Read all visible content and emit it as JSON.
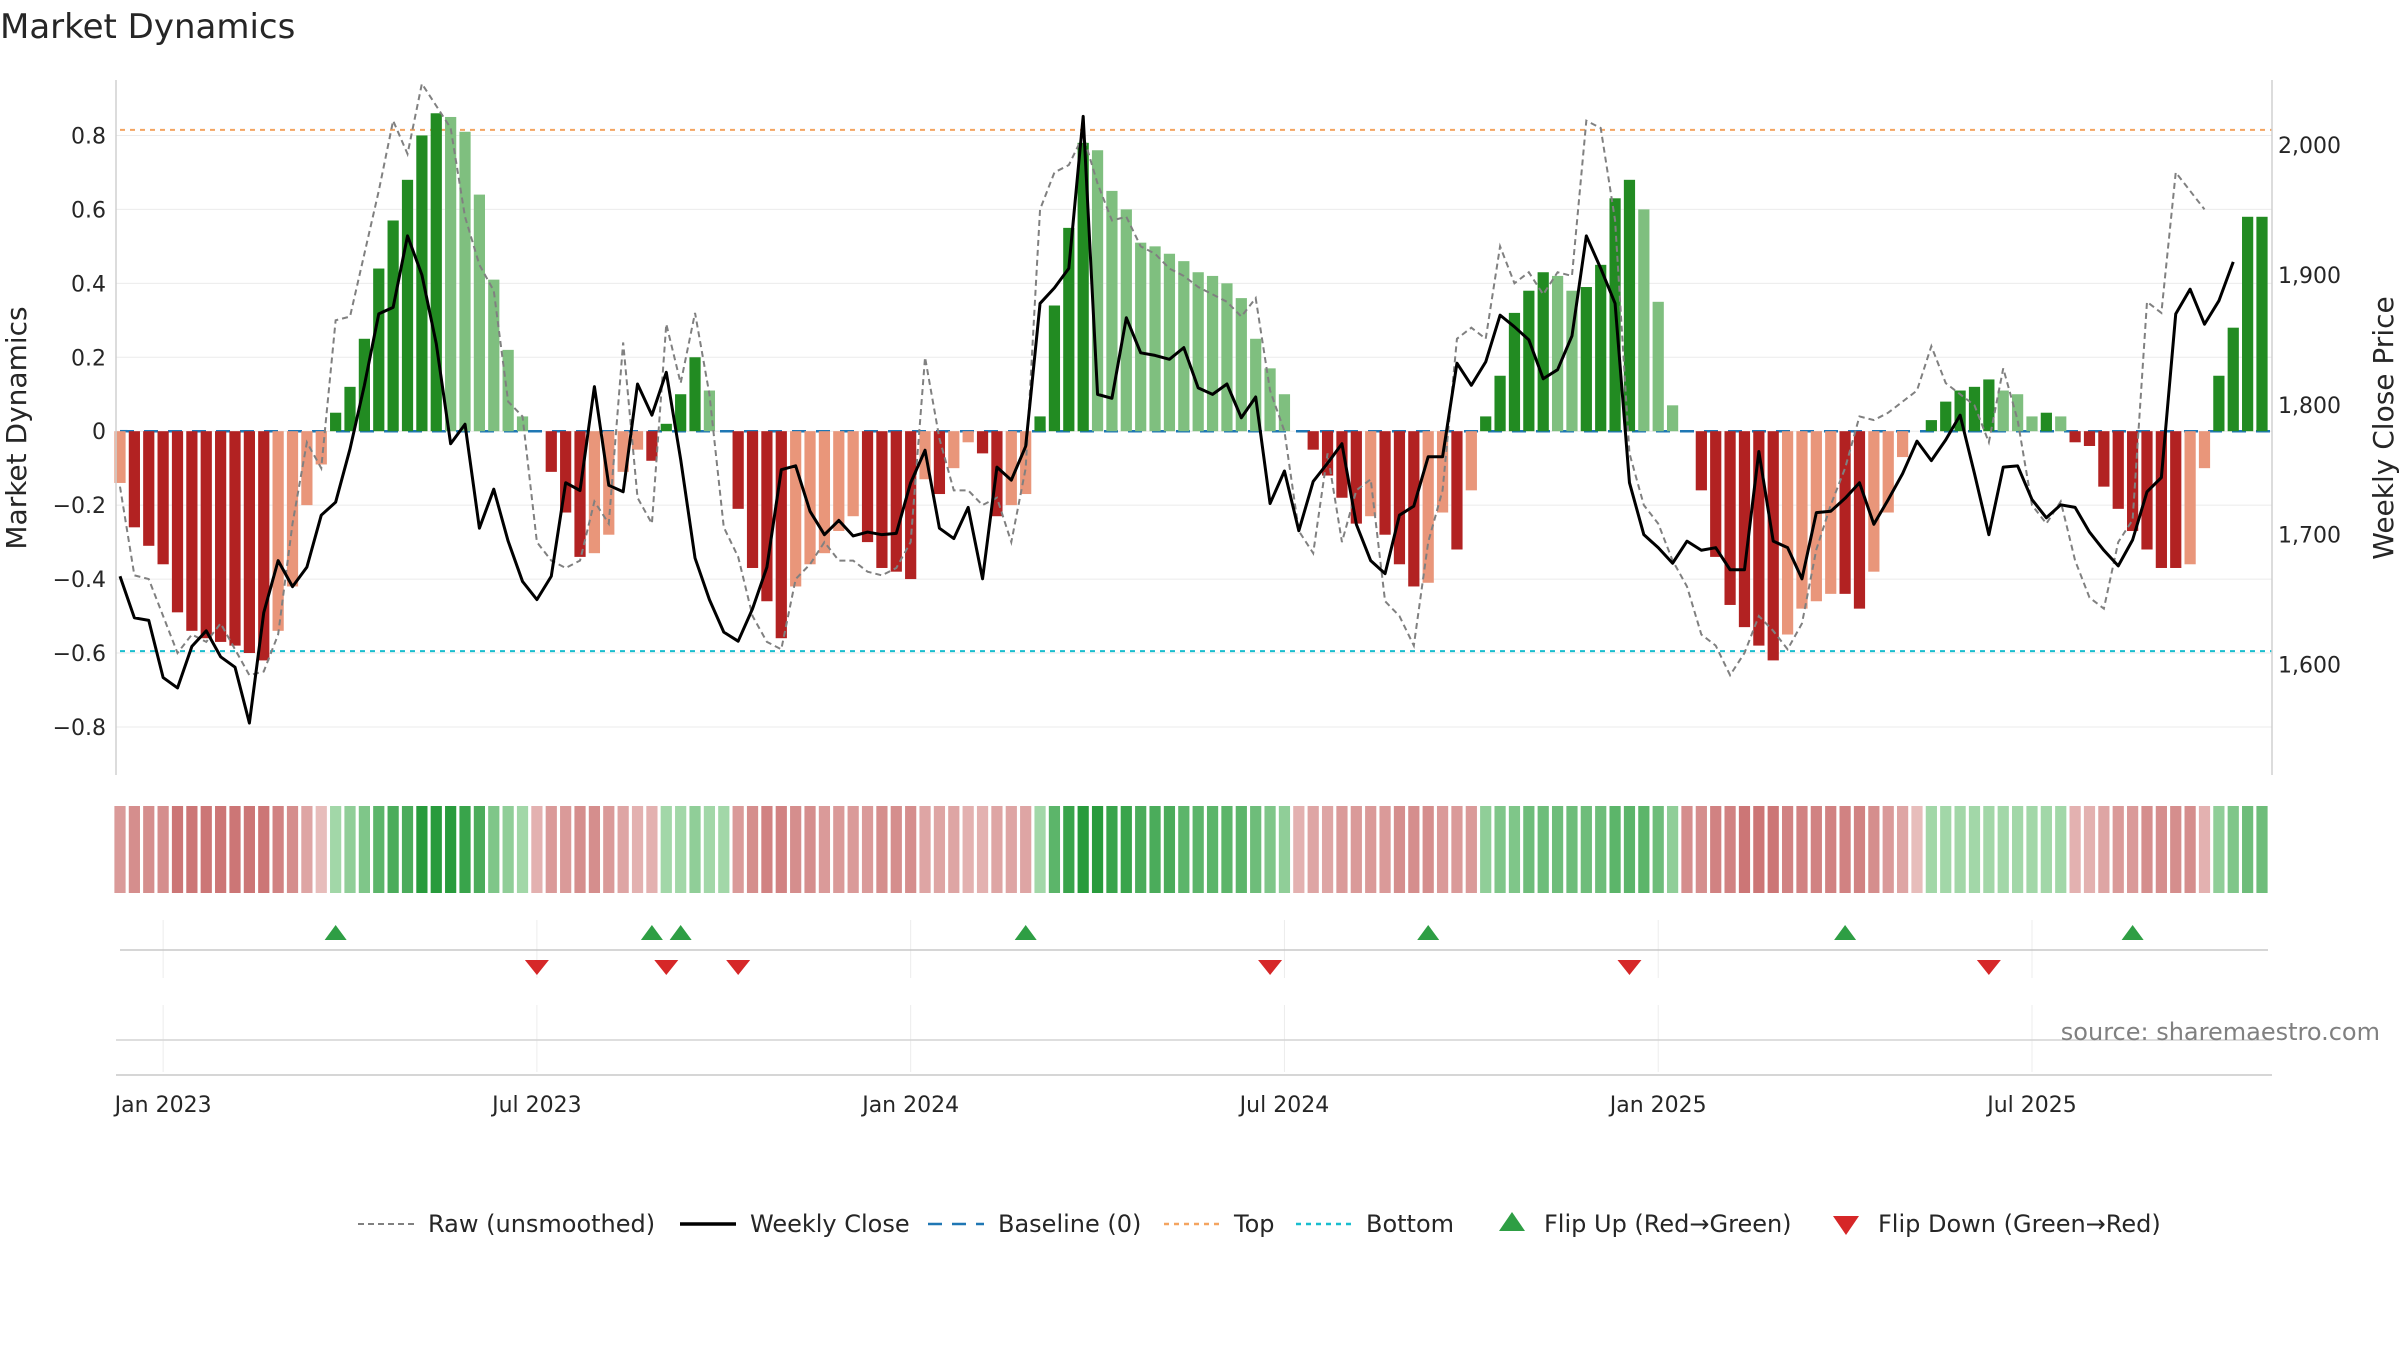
{
  "chart_data": {
    "type": "bar",
    "title": "Market Dynamics",
    "ylabel": "Market Dynamics",
    "y2label": "Weekly Close Price",
    "ylim": [
      -0.93,
      0.95
    ],
    "y2lim": [
      1515,
      2050
    ],
    "y_ticks": [
      0.8,
      0.6,
      0.4,
      0.2,
      0,
      -0.2,
      -0.4,
      -0.6,
      -0.8
    ],
    "y_tick_labels": [
      "0.8",
      "0.6",
      "0.4",
      "0.2",
      "0",
      "−0.2",
      "−0.4",
      "−0.6",
      "−0.8"
    ],
    "y2_ticks": [
      2000,
      1900,
      1800,
      1700,
      1600
    ],
    "y2_tick_labels": [
      "2,000",
      "1,900",
      "1,800",
      "1,700",
      "1,600"
    ],
    "x_ticks": [
      {
        "week": 3,
        "label": "Jan 2023"
      },
      {
        "week": 29,
        "label": "Jul 2023"
      },
      {
        "week": 55,
        "label": "Jan 2024"
      },
      {
        "week": 81,
        "label": "Jul 2024"
      },
      {
        "week": 107,
        "label": "Jan 2025"
      },
      {
        "week": 133,
        "label": "Jul 2025"
      }
    ],
    "top_line": 0.815,
    "bottom_line": -0.595,
    "baseline": 0,
    "colors": {
      "green_strong": "#228b22",
      "green_weak": "#7fbf7f",
      "red_strong": "#b22222",
      "red_weak": "#e9967a",
      "raw": "#808080",
      "close": "#000000",
      "baseline": "#1f77b4",
      "top": "#f4a460",
      "bottom": "#17becf",
      "flip_up": "#2e9e44",
      "flip_down": "#d62728"
    },
    "series": [
      {
        "name": "Market Dynamics",
        "values": [
          -0.14,
          -0.26,
          -0.31,
          -0.36,
          -0.49,
          -0.54,
          -0.56,
          -0.57,
          -0.58,
          -0.6,
          -0.62,
          -0.54,
          -0.42,
          -0.2,
          -0.09,
          0.05,
          0.12,
          0.25,
          0.44,
          0.57,
          0.68,
          0.8,
          0.86,
          0.85,
          0.81,
          0.64,
          0.41,
          0.22,
          0.04,
          0,
          -0.11,
          -0.22,
          -0.34,
          -0.33,
          -0.28,
          -0.11,
          -0.05,
          -0.08,
          0.02,
          0.1,
          0.2,
          0.11,
          0,
          -0.21,
          -0.37,
          -0.46,
          -0.56,
          -0.42,
          -0.36,
          -0.33,
          -0.27,
          -0.23,
          -0.3,
          -0.37,
          -0.38,
          -0.4,
          -0.13,
          -0.17,
          -0.1,
          -0.03,
          -0.06,
          -0.23,
          -0.2,
          -0.17,
          0.04,
          0.34,
          0.55,
          0.78,
          0.76,
          0.65,
          0.6,
          0.51,
          0.5,
          0.48,
          0.46,
          0.43,
          0.42,
          0.4,
          0.36,
          0.25,
          0.17,
          0.1,
          0,
          -0.05,
          -0.12,
          -0.18,
          -0.25,
          -0.23,
          -0.28,
          -0.36,
          -0.42,
          -0.41,
          -0.22,
          -0.32,
          -0.16,
          0.04,
          0.15,
          0.32,
          0.38,
          0.43,
          0.42,
          0.38,
          0.39,
          0.45,
          0.63,
          0.68,
          0.6,
          0.35,
          0.07,
          0,
          -0.16,
          -0.34,
          -0.47,
          -0.53,
          -0.58,
          -0.62,
          -0.55,
          -0.48,
          -0.46,
          -0.44,
          -0.44,
          -0.48,
          -0.38,
          -0.22,
          -0.07,
          0,
          0.03,
          0.08,
          0.11,
          0.12,
          0.14,
          0.11,
          0.1,
          0.04,
          0.05,
          0.04,
          -0.03,
          -0.04,
          -0.15,
          -0.21,
          -0.27,
          -0.32,
          -0.37,
          -0.37,
          -0.36,
          -0.1,
          0.15,
          0.28,
          0.58,
          0.58
        ]
      },
      {
        "name": "Raw (unsmoothed)",
        "values": [
          -0.15,
          -0.39,
          -0.4,
          -0.5,
          -0.6,
          -0.55,
          -0.57,
          -0.52,
          -0.59,
          -0.66,
          -0.65,
          -0.55,
          -0.25,
          -0.03,
          -0.1,
          0.3,
          0.31,
          0.48,
          0.65,
          0.84,
          0.75,
          0.94,
          0.88,
          0.82,
          0.58,
          0.45,
          0.38,
          0.08,
          0.04,
          -0.3,
          -0.35,
          -0.37,
          -0.35,
          -0.19,
          -0.25,
          0.24,
          -0.18,
          -0.25,
          0.29,
          0.13,
          0.32,
          0.1,
          -0.26,
          -0.34,
          -0.5,
          -0.57,
          -0.59,
          -0.4,
          -0.36,
          -0.3,
          -0.35,
          -0.35,
          -0.38,
          -0.39,
          -0.37,
          -0.3,
          0.2,
          -0.02,
          -0.16,
          -0.16,
          -0.2,
          -0.18,
          -0.3,
          -0.1,
          0.6,
          0.7,
          0.72,
          0.8,
          0.67,
          0.57,
          0.58,
          0.5,
          0.48,
          0.44,
          0.42,
          0.39,
          0.37,
          0.35,
          0.31,
          0.36,
          0.11,
          0,
          -0.27,
          -0.33,
          -0.06,
          -0.3,
          -0.16,
          -0.13,
          -0.46,
          -0.5,
          -0.58,
          -0.3,
          -0.16,
          0.25,
          0.28,
          0.25,
          0.5,
          0.4,
          0.43,
          0.37,
          0.43,
          0.42,
          0.84,
          0.82,
          0.57,
          -0.06,
          -0.2,
          -0.25,
          -0.35,
          -0.42,
          -0.55,
          -0.58,
          -0.66,
          -0.6,
          -0.5,
          -0.54,
          -0.59,
          -0.52,
          -0.32,
          -0.2,
          -0.1,
          0.04,
          0.03,
          0.05,
          0.08,
          0.11,
          0.23,
          0.13,
          0.1,
          0.07,
          -0.03,
          0.17,
          0.03,
          -0.2,
          -0.25,
          -0.19,
          -0.35,
          -0.45,
          -0.48,
          -0.3,
          -0.24,
          0.35,
          0.32,
          0.7,
          0.65,
          0.6
        ]
      },
      {
        "name": "Weekly Close",
        "values": [
          1668,
          1636,
          1634,
          1590,
          1582,
          1614,
          1626,
          1606,
          1598,
          1555,
          1640,
          1680,
          1660,
          1675,
          1715,
          1725,
          1766,
          1815,
          1870,
          1875,
          1930,
          1900,
          1847,
          1770,
          1785,
          1705,
          1735,
          1695,
          1664,
          1650,
          1668,
          1740,
          1734,
          1814,
          1738,
          1733,
          1816,
          1792,
          1825,
          1758,
          1682,
          1650,
          1625,
          1618,
          1643,
          1675,
          1750,
          1753,
          1718,
          1700,
          1711,
          1699,
          1702,
          1700,
          1701,
          1740,
          1765,
          1705,
          1697,
          1721,
          1666,
          1752,
          1742,
          1768,
          1878,
          1890,
          1905,
          2022,
          1808,
          1805,
          1867,
          1840,
          1838,
          1835,
          1844,
          1813,
          1808,
          1816,
          1790,
          1806,
          1724,
          1749,
          1703,
          1741,
          1755,
          1770,
          1708,
          1680,
          1670,
          1715,
          1722,
          1760,
          1760,
          1832,
          1815,
          1833,
          1869,
          1860,
          1850,
          1820,
          1827,
          1853,
          1930,
          1905,
          1878,
          1740,
          1700,
          1690,
          1678,
          1695,
          1688,
          1690,
          1673,
          1673,
          1764,
          1695,
          1690,
          1666,
          1717,
          1718,
          1728,
          1740,
          1708,
          1727,
          1747,
          1772,
          1757,
          1773,
          1792,
          1747,
          1700,
          1752,
          1753,
          1727,
          1713,
          1723,
          1721,
          1702,
          1688,
          1676,
          1696,
          1733,
          1744,
          1870,
          1889,
          1862,
          1880,
          1910
        ]
      }
    ],
    "state_strip": {
      "label": "",
      "levels": [
        -0.5,
        -0.6,
        -0.6,
        -0.6,
        -0.8,
        -0.8,
        -0.8,
        -0.8,
        -0.8,
        -0.8,
        -0.8,
        -0.7,
        -0.6,
        -0.4,
        -0.2,
        0.3,
        0.4,
        0.5,
        0.7,
        0.8,
        0.8,
        1,
        1,
        1,
        0.9,
        0.8,
        0.5,
        0.4,
        0.3,
        -0.3,
        -0.5,
        -0.5,
        -0.6,
        -0.6,
        -0.5,
        -0.4,
        -0.3,
        -0.3,
        0.3,
        0.3,
        0.4,
        0.3,
        0.3,
        -0.5,
        -0.6,
        -0.7,
        -0.7,
        -0.6,
        -0.6,
        -0.5,
        -0.5,
        -0.5,
        -0.5,
        -0.6,
        -0.6,
        -0.6,
        -0.4,
        -0.4,
        -0.4,
        -0.3,
        -0.3,
        -0.4,
        -0.4,
        -0.4,
        0.3,
        0.7,
        0.9,
        1,
        1,
        0.9,
        0.9,
        0.8,
        0.8,
        0.8,
        0.7,
        0.7,
        0.7,
        0.7,
        0.7,
        0.6,
        0.5,
        0.4,
        -0.3,
        -0.4,
        -0.4,
        -0.5,
        -0.5,
        -0.5,
        -0.5,
        -0.6,
        -0.6,
        -0.6,
        -0.5,
        -0.5,
        -0.5,
        0.4,
        0.5,
        0.5,
        0.6,
        0.6,
        0.6,
        0.6,
        0.6,
        0.6,
        0.7,
        0.7,
        0.7,
        0.6,
        0.4,
        -0.6,
        -0.6,
        -0.7,
        -0.7,
        -0.8,
        -0.8,
        -0.8,
        -0.7,
        -0.7,
        -0.7,
        -0.7,
        -0.7,
        -0.7,
        -0.6,
        -0.5,
        -0.4,
        -0.2,
        0.3,
        0.3,
        0.3,
        0.3,
        0.3,
        0.3,
        0.3,
        0.3,
        0.3,
        0.3,
        -0.3,
        -0.3,
        -0.4,
        -0.5,
        -0.5,
        -0.6,
        -0.6,
        -0.6,
        -0.6,
        -0.3,
        0.4,
        0.5,
        0.6,
        0.6
      ]
    },
    "flips_up": [
      15,
      37,
      39,
      63,
      91,
      120,
      140
    ],
    "flips_down": [
      29,
      38,
      43,
      80,
      105,
      130
    ],
    "legend": [
      {
        "key": "raw",
        "label": "Raw (unsmoothed)"
      },
      {
        "key": "close",
        "label": "Weekly Close"
      },
      {
        "key": "baseline",
        "label": "Baseline (0)"
      },
      {
        "key": "top",
        "label": "Top"
      },
      {
        "key": "bottom",
        "label": "Bottom"
      },
      {
        "key": "flip_up",
        "label": "Flip Up (Red→Green)"
      },
      {
        "key": "flip_down",
        "label": "Flip Down (Green→Red)"
      }
    ],
    "grid": true,
    "legend_position": "bottom-center",
    "source_note": "source: sharemaestro.com"
  }
}
